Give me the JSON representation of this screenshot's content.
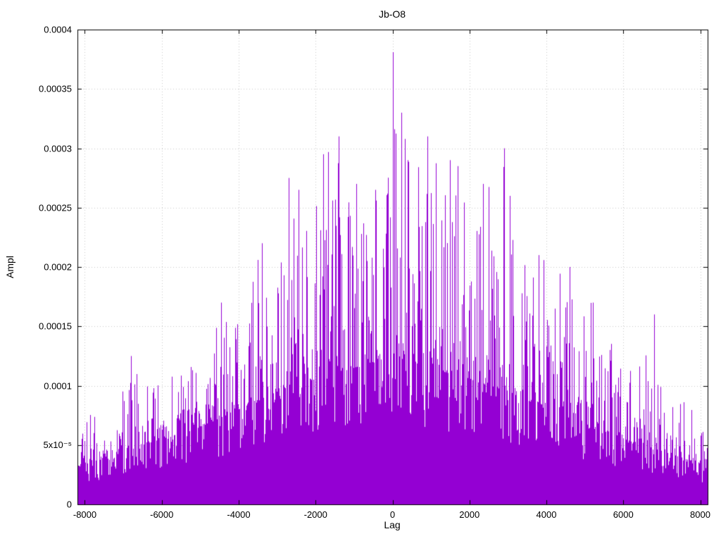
{
  "chart_data": {
    "type": "bar",
    "subtype": "impulses",
    "title": "Jb-O8",
    "xlabel": "Lag",
    "ylabel": "Ampl",
    "xlim": [
      -8192,
      8192
    ],
    "ylim": [
      0,
      0.0004
    ],
    "grid": true,
    "legend": "none",
    "series_color": "#9400d3",
    "grid_color": "#c8c8c8",
    "border_color": "#000000",
    "background_color": "#ffffff",
    "xticks": {
      "values": [
        -8000,
        -6000,
        -4000,
        -2000,
        0,
        2000,
        4000,
        6000,
        8000
      ],
      "labels": [
        "-8000",
        "-6000",
        "-4000",
        "-2000",
        "0",
        "2000",
        "4000",
        "6000",
        "8000"
      ]
    },
    "yticks": {
      "values": [
        0,
        5e-05,
        0.0001,
        0.00015,
        0.0002,
        0.00025,
        0.0003,
        0.00035,
        0.0004
      ],
      "labels": [
        "0",
        "5x10⁻⁵",
        "0.0001",
        "0.00015",
        "0.0002",
        "0.00025",
        "0.0003",
        "0.00035",
        "0.0004"
      ]
    },
    "envelope_max": [
      [
        -8192,
        7e-05
      ],
      [
        -7600,
        8e-05
      ],
      [
        -7200,
        9e-05
      ],
      [
        -6800,
        0.000125
      ],
      [
        -6400,
        0.0001
      ],
      [
        -6000,
        0.000105
      ],
      [
        -5600,
        0.00011
      ],
      [
        -5200,
        0.00012
      ],
      [
        -4800,
        0.00014
      ],
      [
        -4400,
        0.00017
      ],
      [
        -4000,
        0.00016
      ],
      [
        -3600,
        0.0002
      ],
      [
        -3300,
        0.00022
      ],
      [
        -3000,
        0.00019
      ],
      [
        -2700,
        0.000275
      ],
      [
        -2400,
        0.000265
      ],
      [
        -2100,
        0.00024
      ],
      [
        -1800,
        0.000295
      ],
      [
        -1400,
        0.00031
      ],
      [
        -1100,
        0.00027
      ],
      [
        -800,
        0.00025
      ],
      [
        -400,
        0.000275
      ],
      [
        -100,
        0.00028
      ],
      [
        0,
        0.00038
      ],
      [
        200,
        0.00033
      ],
      [
        500,
        0.00029
      ],
      [
        900,
        0.00031
      ],
      [
        1300,
        0.00029
      ],
      [
        1700,
        0.000285
      ],
      [
        2100,
        0.00022
      ],
      [
        2400,
        0.00027
      ],
      [
        2900,
        0.0003
      ],
      [
        3300,
        0.00021
      ],
      [
        3700,
        0.0002
      ],
      [
        4100,
        0.00021
      ],
      [
        4500,
        0.0002
      ],
      [
        4900,
        0.00017
      ],
      [
        5300,
        0.00017
      ],
      [
        5700,
        0.00014
      ],
      [
        6100,
        0.00012
      ],
      [
        6500,
        0.00012
      ],
      [
        6800,
        0.00016
      ],
      [
        7200,
        0.0001
      ],
      [
        7600,
        9e-05
      ],
      [
        8192,
        7e-05
      ]
    ],
    "dense_top": [
      [
        -8192,
        3e-05
      ],
      [
        -7000,
        4.5e-05
      ],
      [
        -6000,
        5.5e-05
      ],
      [
        -5000,
        6.5e-05
      ],
      [
        -4000,
        8e-05
      ],
      [
        -3000,
        9.5e-05
      ],
      [
        -2000,
        0.000105
      ],
      [
        -1000,
        0.000115
      ],
      [
        0,
        0.000125
      ],
      [
        1000,
        0.000115
      ],
      [
        2000,
        0.000105
      ],
      [
        3000,
        9.5e-05
      ],
      [
        4000,
        8e-05
      ],
      [
        5000,
        6.8e-05
      ],
      [
        6000,
        5.5e-05
      ],
      [
        7000,
        4.5e-05
      ],
      [
        8192,
        3.2e-05
      ]
    ],
    "notable_peaks": [
      [
        -6800,
        0.000125
      ],
      [
        -4450,
        0.00017
      ],
      [
        -3400,
        0.00022
      ],
      [
        -2700,
        0.000275
      ],
      [
        -2450,
        0.000265
      ],
      [
        -1800,
        0.000295
      ],
      [
        -1400,
        0.00031
      ],
      [
        -950,
        0.00027
      ],
      [
        -450,
        0.000265
      ],
      [
        0,
        0.000381
      ],
      [
        230,
        0.00033
      ],
      [
        900,
        0.00031
      ],
      [
        1500,
        0.00029
      ],
      [
        1700,
        0.000285
      ],
      [
        2350,
        0.00027
      ],
      [
        2900,
        0.0003
      ],
      [
        3800,
        0.00021
      ],
      [
        4600,
        0.0002
      ],
      [
        5200,
        0.00017
      ],
      [
        6800,
        0.00016
      ]
    ],
    "render": {
      "seed": 42,
      "spike_probability": 0.55,
      "secondary_spike_probability": 0.35
    }
  }
}
